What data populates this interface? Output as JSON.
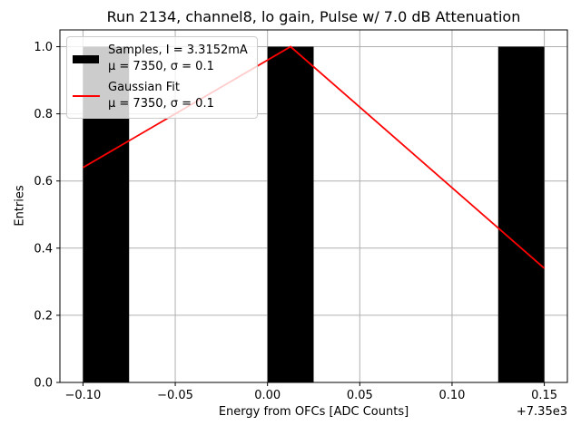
{
  "chart_data": {
    "type": "bar",
    "title": "Run 2134, channel8, lo gain, Pulse w/ 7.0 dB Attenuation",
    "xlabel": "Energy from OFCs [ADC Counts]",
    "ylabel": "Entries",
    "x_offset_label": "+7.35e3",
    "xlim": [
      -0.1125,
      0.1625
    ],
    "ylim": [
      0,
      1.05
    ],
    "grid": true,
    "grid_color": "#b0b0b0",
    "background_color": "#ffffff",
    "x_ticks": [
      {
        "v": -0.1,
        "label": "−0.10"
      },
      {
        "v": -0.05,
        "label": "−0.05"
      },
      {
        "v": 0.0,
        "label": "0.00"
      },
      {
        "v": 0.05,
        "label": "0.05"
      },
      {
        "v": 0.1,
        "label": "0.10"
      },
      {
        "v": 0.15,
        "label": "0.15"
      }
    ],
    "y_ticks": [
      {
        "v": 0.0,
        "label": "0.0"
      },
      {
        "v": 0.2,
        "label": "0.2"
      },
      {
        "v": 0.4,
        "label": "0.4"
      },
      {
        "v": 0.6,
        "label": "0.6"
      },
      {
        "v": 0.8,
        "label": "0.8"
      },
      {
        "v": 1.0,
        "label": "1.0"
      }
    ],
    "bars": {
      "color": "#000000",
      "items": [
        {
          "x0": -0.1,
          "x1": -0.075,
          "height": 1.0
        },
        {
          "x0": 0.0,
          "x1": 0.025,
          "height": 1.0
        },
        {
          "x0": 0.125,
          "x1": 0.15,
          "height": 1.0
        }
      ]
    },
    "fit_line": {
      "color": "#ff0000",
      "points": [
        [
          -0.1,
          0.64
        ],
        [
          0.0125,
          1.0
        ],
        [
          0.15,
          0.34
        ]
      ]
    },
    "legend": {
      "position": "upper left",
      "entries": [
        {
          "swatch": "patch",
          "color": "#000000",
          "label": "Samples, I = 3.3152mA",
          "sublabel": "μ = 7350, σ = 0.1"
        },
        {
          "swatch": "line",
          "color": "#ff0000",
          "label": "Gaussian Fit",
          "sublabel": "μ = 7350, σ = 0.1"
        }
      ]
    }
  }
}
